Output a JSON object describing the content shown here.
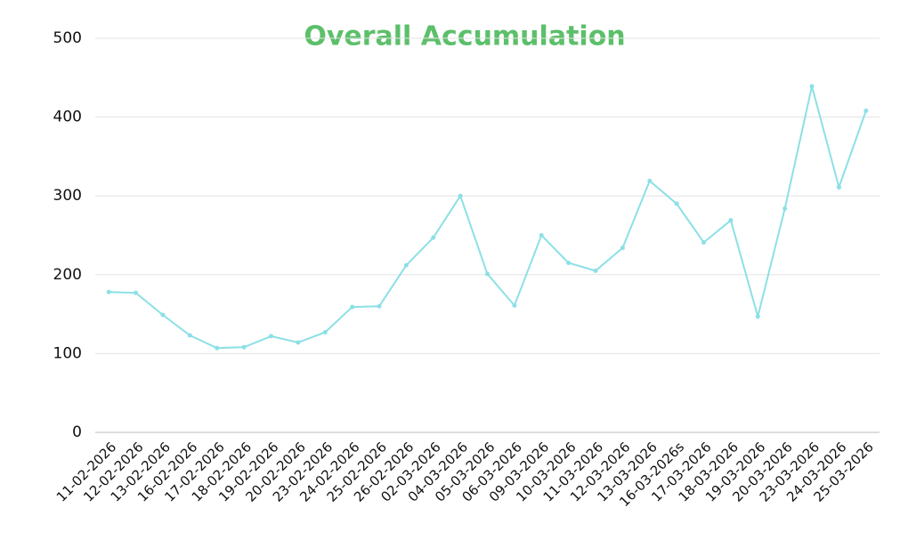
{
  "chart_data": {
    "type": "line",
    "title": "Overall Accumulation",
    "categories": [
      "11-02-2026",
      "12-02-2026",
      "13-02-2026",
      "16-02-2026",
      "17-02-2026",
      "18-02-2026",
      "19-02-2026",
      "20-02-2026",
      "23-02-2026",
      "24-02-2026",
      "25-02-2026",
      "26-02-2026",
      "02-03-2026",
      "04-03-2026",
      "05-03-2026",
      "06-03-2026",
      "09-03-2026",
      "10-03-2026",
      "11-03-2026",
      "12-03-2026",
      "13-03-2026",
      "16-03-2026s",
      "17-03-2026",
      "18-03-2026",
      "19-03-2026",
      "20-03-2026",
      "23-03-2026",
      "24-03-2026",
      "25-03-2026"
    ],
    "values": [
      178,
      177,
      149,
      123,
      107,
      108,
      122,
      114,
      127,
      159,
      160,
      212,
      247,
      300,
      201,
      161,
      250,
      215,
      205,
      234,
      319,
      290,
      241,
      269,
      147,
      284,
      439,
      311,
      408
    ],
    "color": "#8be0e6",
    "ylim": [
      0,
      500
    ],
    "yticks": [
      0,
      100,
      200,
      300,
      400,
      500
    ],
    "grid": true
  }
}
